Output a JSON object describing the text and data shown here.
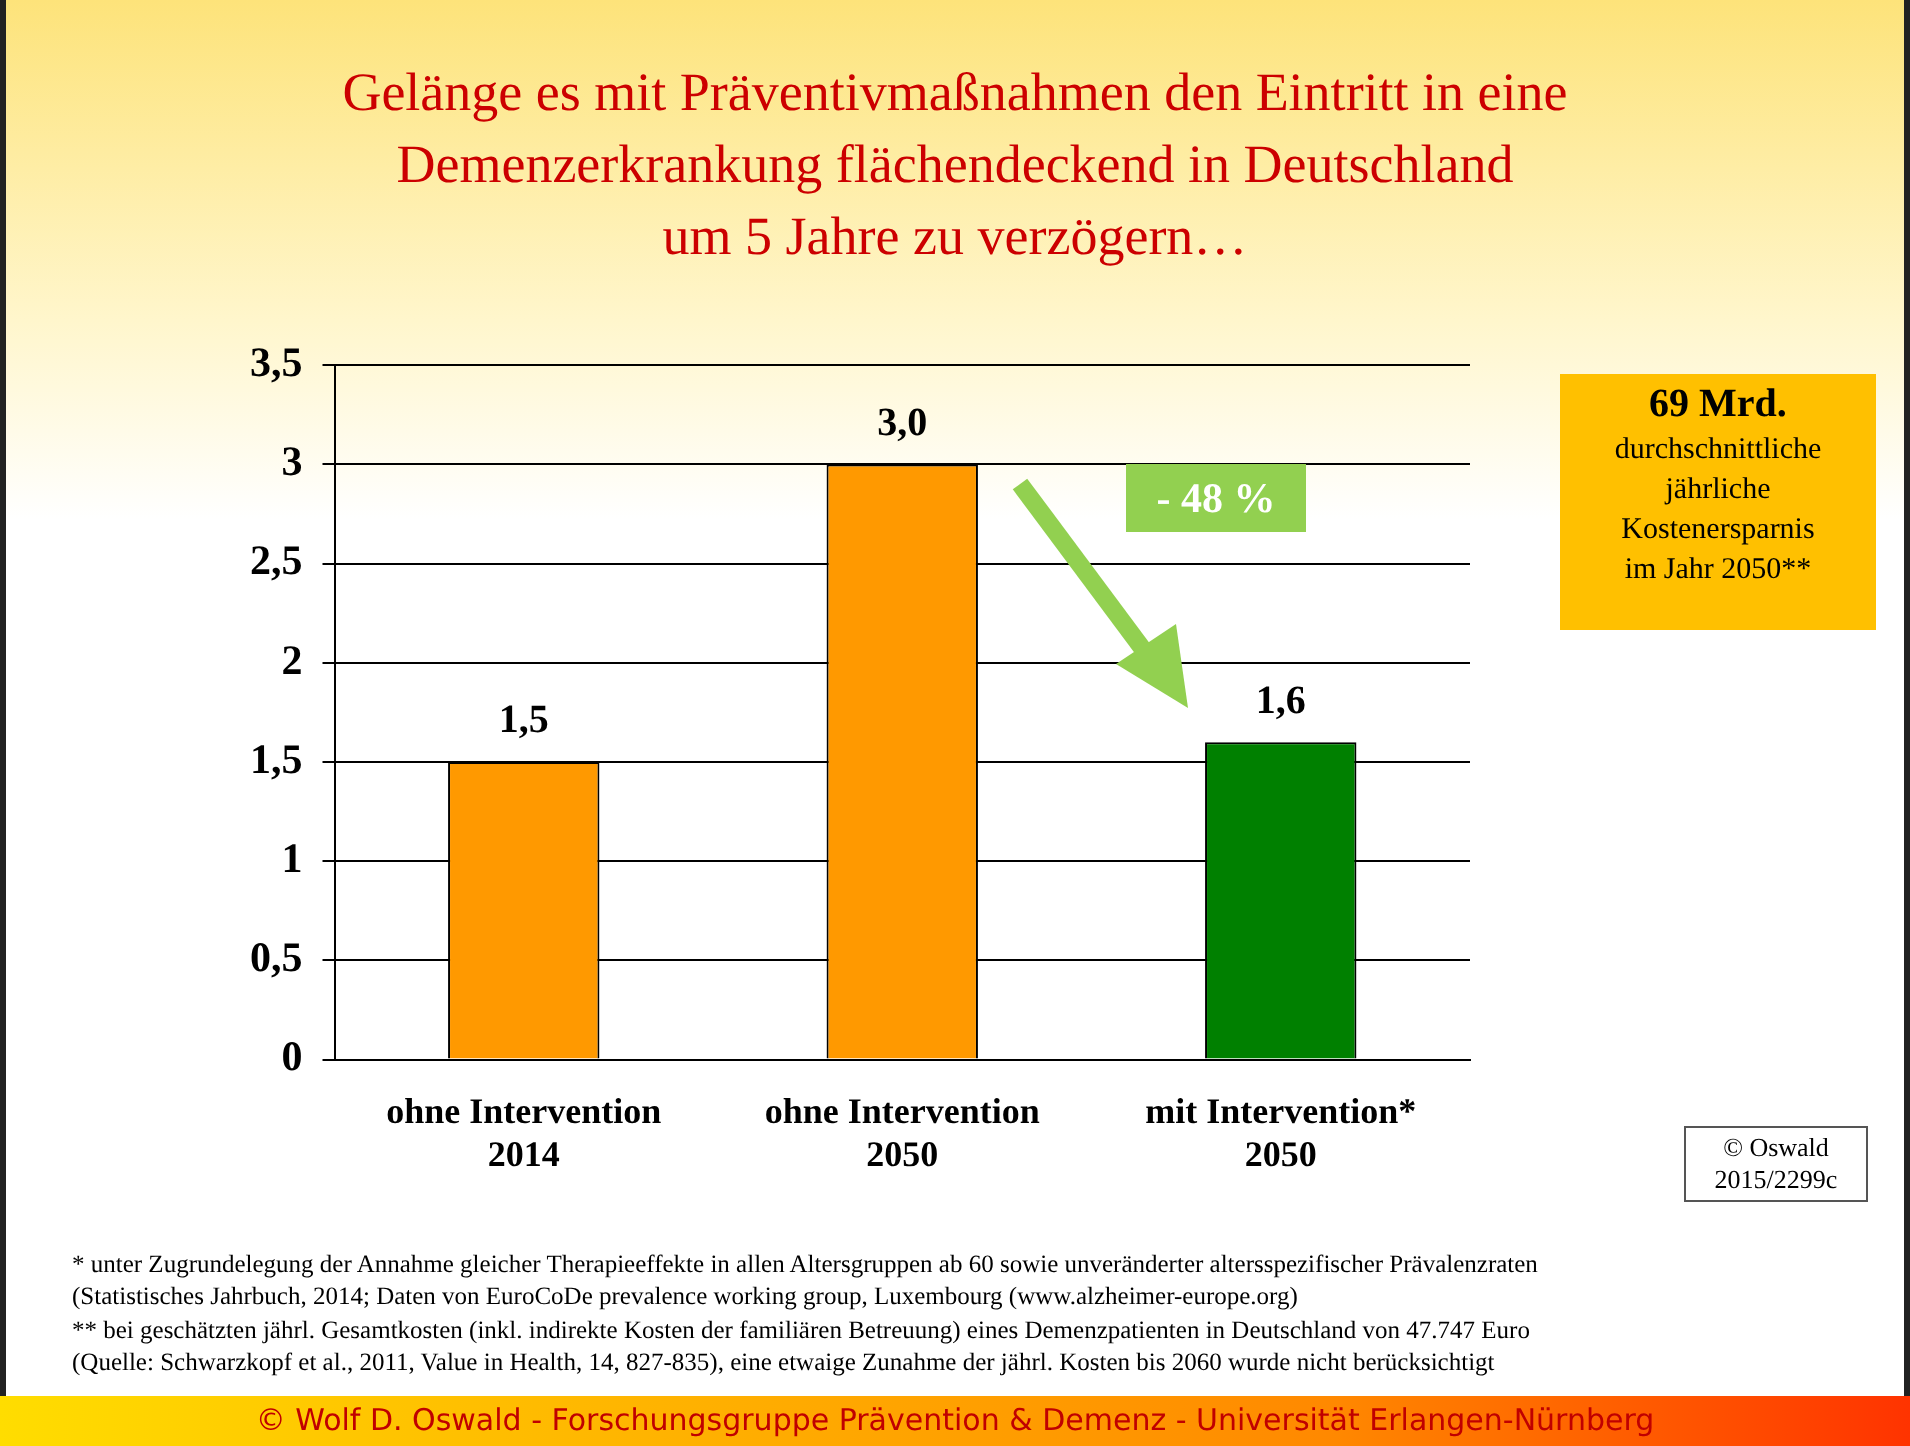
{
  "chart_data": {
    "type": "bar",
    "title": "Gelänge es mit Präventivmaßnahmen den Eintritt in eine\nDemenzerkrankung flächendeckend in Deutschland\num 5 Jahre zu verzögern…",
    "categories": [
      "ohne Intervention\n2014",
      "ohne Intervention\n2050",
      "mit Intervention*\n2050"
    ],
    "values": [
      1.5,
      3.0,
      1.6
    ],
    "colors": [
      "#ff9900",
      "#ff9900",
      "#008000"
    ],
    "value_labels": [
      "1,5",
      "3,0",
      "1,6"
    ],
    "ylim": [
      0,
      3.5
    ],
    "yticks": [
      0,
      {
        "value": 0.5,
        "label": "0,5"
      },
      1,
      {
        "value": 1.5,
        "label": "1,5"
      },
      2,
      {
        "value": 2.5,
        "label": "2,5"
      },
      3,
      {
        "value": 3.5,
        "label": "3,5"
      }
    ],
    "grid": "y",
    "annotations": [
      "- 48 %",
      "69 Mrd.\ndurchschnittliche\njährliche\nKostenersparnis\nim Jahr 2050**",
      "© Oswald\n2015/2299c",
      "*  unter Zugrundelegung der Annahme gleicher Therapieeffekte in allen Altersgruppen ab 60 sowie unveränderter altersspezifischer Prävalenzraten\n(Statistisches Jahrbuch, 2014; Daten von EuroCoDe prevalence working group, Luxembourg (www.alzheimer-europe.org)",
      "** bei geschätzten jährl. Gesamtkosten (inkl. indirekte Kosten der familiären Betreuung) eines Demenzpatienten in Deutschland von 47.747 Euro\n(Quelle: Schwarzkopf et al., 2011, Value in Health, 14, 827-835), eine etwaige Zunahme der jährl. Kosten bis 2060 wurde nicht berücksichtigt",
      "© Wolf D. Oswald - Forschungsgruppe Prävention & Demenz - Universität Erlangen-Nürnberg"
    ]
  }
}
